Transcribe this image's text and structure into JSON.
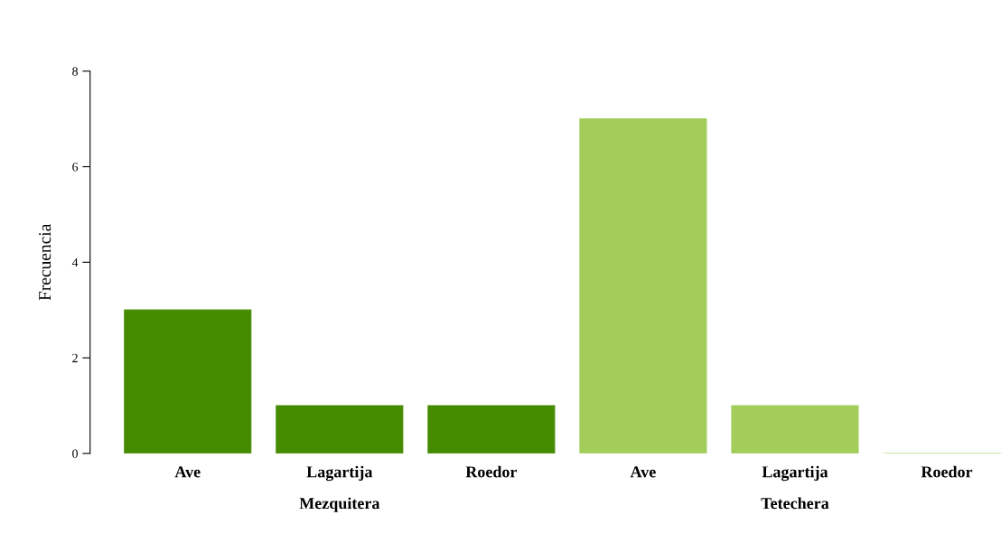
{
  "chart_data": {
    "type": "bar",
    "ylabel": "Frecuencia",
    "categories": [
      "Ave",
      "Lagartija",
      "Roedor",
      "Ave",
      "Lagartija",
      "Roedor"
    ],
    "series": [
      {
        "name": "Mezquitera",
        "color": "#458b00",
        "values": [
          3,
          1,
          1,
          null,
          null,
          null
        ]
      },
      {
        "name": "Tetechera",
        "color": "#a2cd5a",
        "values": [
          null,
          null,
          null,
          7,
          1,
          0
        ]
      }
    ],
    "ylim": [
      0,
      8
    ],
    "yticks": [
      0,
      2,
      4,
      6,
      8
    ],
    "grid": false,
    "legend": false
  }
}
